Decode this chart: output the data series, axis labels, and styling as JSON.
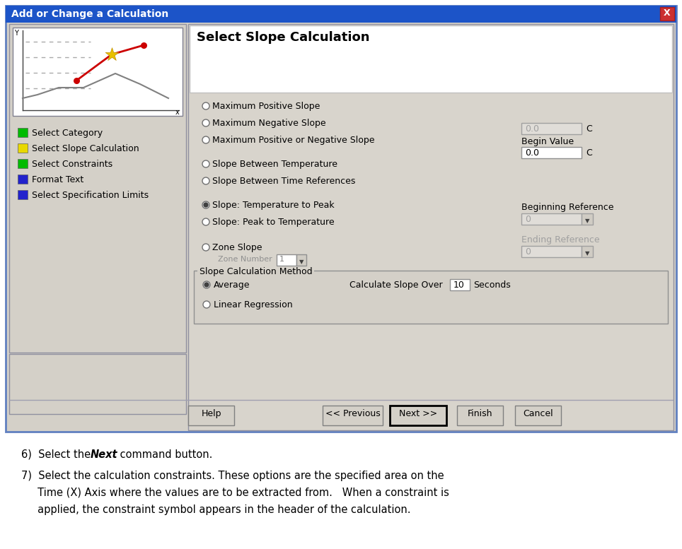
{
  "title": "Add or Change a Calculation",
  "section_title": "Select Slope Calculation",
  "bg_color": "#d4d0c8",
  "title_bar_color": "#1c54c8",
  "title_text_color": "#ffffff",
  "left_panel_items": [
    {
      "text": "Select Category",
      "color": "#00bb00"
    },
    {
      "text": "Select Slope Calculation",
      "color": "#e8d800"
    },
    {
      "text": "Select Constraints",
      "color": "#00bb00"
    },
    {
      "text": "Format Text",
      "color": "#2222cc"
    },
    {
      "text": "Select Specification Limits",
      "color": "#2222cc"
    }
  ],
  "radio_options": [
    "Maximum Positive Slope",
    "Maximum Negative Slope",
    "Maximum Positive or Negative Slope",
    "Slope Between Temperature",
    "Slope Between Time References",
    "Slope: Temperature to Peak",
    "Slope: Peak to Temperature",
    "Zone Slope"
  ],
  "selected_radio": 5,
  "method_group_title": "Slope Calculation Method",
  "method_options": [
    "Average",
    "Linear Regression"
  ],
  "selected_method": 0,
  "calc_slope_over_label": "Calculate Slope Over",
  "calc_slope_value": "10",
  "calc_slope_unit": "Seconds",
  "zone_number_label": "Zone Number",
  "zone_number_value": "1",
  "buttons": [
    "Help",
    "<< Previous",
    "Next >>",
    "Finish",
    "Cancel"
  ],
  "next_button_index": 2,
  "line1_pre": "6)  Select the ",
  "line1_bold": "Next",
  "line1_post": " command button.",
  "line2": "7)  Select the calculation constraints. These options are the specified area on the",
  "line3": "     Time (X) Axis where the values are to be extracted from.   When a constraint is",
  "line4": "     applied, the constraint symbol appears in the header of the calculation."
}
